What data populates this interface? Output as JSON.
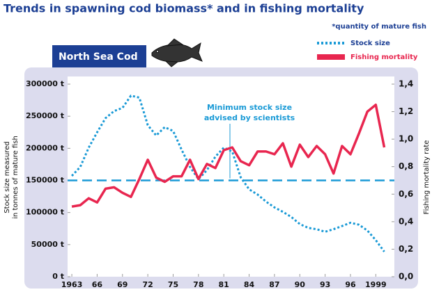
{
  "chart_data": {
    "type": "line",
    "title": "Trends in spawning cod biomass* and in fishing mortality",
    "note": "*quantity of mature fish",
    "panel_title": "North Sea Cod",
    "y_label": [
      "Stock size measured",
      "in tonnes of mature fish"
    ],
    "y2_label": "Fishing mortality rate",
    "x": [
      1963,
      1964,
      1965,
      1966,
      1967,
      1968,
      1969,
      1970,
      1971,
      1972,
      1973,
      1974,
      1975,
      1976,
      1977,
      1978,
      1979,
      1980,
      1981,
      1982,
      1983,
      1984,
      1985,
      1986,
      1987,
      1988,
      1989,
      1990,
      1991,
      1992,
      1993,
      1994,
      1995,
      1996,
      1997,
      1998,
      1999,
      2000
    ],
    "series": [
      {
        "name": "Stock size",
        "color": "#1a9ad6",
        "style": "dotted",
        "axis": "y",
        "values": [
          157000,
          171000,
          201000,
          225000,
          247000,
          258000,
          263000,
          282000,
          279000,
          236000,
          220000,
          233000,
          227000,
          198000,
          171000,
          152000,
          166000,
          187000,
          201000,
          195000,
          155000,
          136000,
          128000,
          117000,
          108000,
          101000,
          93000,
          82000,
          76000,
          74000,
          70000,
          74000,
          79000,
          84000,
          81000,
          72000,
          57000,
          39000
        ]
      },
      {
        "name": "Fishing mortality",
        "color": "#e8264f",
        "style": "solid",
        "axis": "y2",
        "values": [
          0.51,
          0.52,
          0.57,
          0.54,
          0.64,
          0.65,
          0.61,
          0.58,
          0.71,
          0.85,
          0.72,
          0.69,
          0.73,
          0.73,
          0.85,
          0.71,
          0.82,
          0.79,
          0.92,
          0.94,
          0.84,
          0.81,
          0.91,
          0.91,
          0.89,
          0.97,
          0.8,
          0.96,
          0.87,
          0.95,
          0.89,
          0.75,
          0.95,
          0.89,
          1.04,
          1.2,
          1.25,
          0.94
        ]
      }
    ],
    "reference_line": {
      "value": 150000,
      "axis": "y",
      "color": "#1a9ad6",
      "lines": [
        "Minimum stock size",
        "advised by scientists"
      ]
    },
    "xlim": [
      1962.5,
      2001.2
    ],
    "xticks": [
      1963,
      {
        "value": 1966,
        "label": "66"
      },
      {
        "value": 1969,
        "label": "69"
      },
      {
        "value": 1972,
        "label": "72"
      },
      {
        "value": 1975,
        "label": "75"
      },
      {
        "value": 1978,
        "label": "78"
      },
      {
        "value": 1981,
        "label": "81"
      },
      {
        "value": 1984,
        "label": "84"
      },
      {
        "value": 1987,
        "label": "87"
      },
      {
        "value": 1990,
        "label": "90"
      },
      {
        "value": 1993,
        "label": "93"
      },
      {
        "value": 1996,
        "label": "96"
      },
      1999
    ],
    "ylim": [
      0,
      300000
    ],
    "yticks": [
      {
        "value": 0,
        "label": "0 t"
      },
      {
        "value": 50000,
        "label": "50000 t"
      },
      {
        "value": 100000,
        "label": "100000 t"
      },
      {
        "value": 150000,
        "label": "150000 t"
      },
      {
        "value": 200000,
        "label": "200000 t"
      },
      {
        "value": 250000,
        "label": "250000 t"
      },
      {
        "value": 300000,
        "label": "300000 t"
      }
    ],
    "y2lim": [
      0,
      1.4
    ],
    "y2ticks": [
      {
        "value": 0,
        "label": "0,0"
      },
      {
        "value": 0.2,
        "label": "0,2"
      },
      {
        "value": 0.4,
        "label": "0,4"
      },
      {
        "value": 0.6,
        "label": "0,6"
      },
      {
        "value": 0.8,
        "label": "0,8"
      },
      {
        "value": 1.0,
        "label": "1,0"
      },
      {
        "value": 1.2,
        "label": "1,2"
      },
      {
        "value": 1.4,
        "label": "1,4"
      }
    ],
    "grid": false,
    "legend": "top-right"
  }
}
